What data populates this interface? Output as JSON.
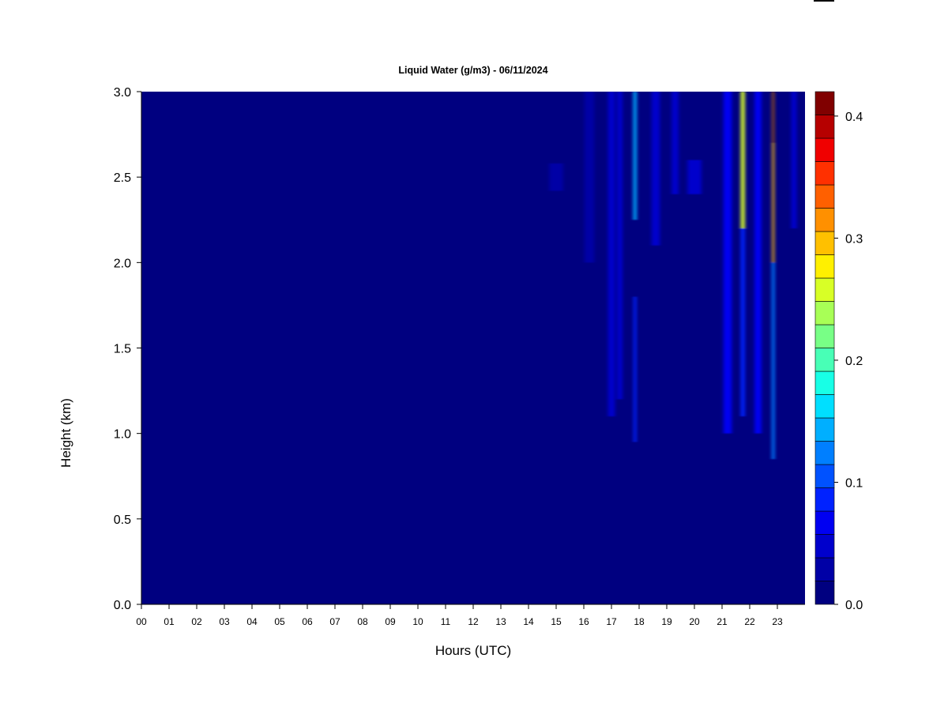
{
  "chart_data": {
    "type": "heatmap",
    "title": "Liquid Water (g/m3) - 06/11/2024",
    "xlabel": "Hours (UTC)",
    "ylabel": "Height (km)",
    "x_tick_labels": [
      "00",
      "01",
      "02",
      "03",
      "04",
      "05",
      "06",
      "07",
      "08",
      "09",
      "10",
      "11",
      "12",
      "13",
      "14",
      "15",
      "16",
      "17",
      "18",
      "19",
      "20",
      "21",
      "22",
      "23"
    ],
    "xlim": [
      0,
      24
    ],
    "y_ticks": [
      0.0,
      0.5,
      1.0,
      1.5,
      2.0,
      2.5,
      3.0
    ],
    "y_tick_labels": [
      "0.0",
      "0.5",
      "1.0",
      "1.5",
      "2.0",
      "2.5",
      "3.0"
    ],
    "ylim": [
      0,
      3
    ],
    "colorbar": {
      "range": [
        0,
        0.42
      ],
      "ticks": [
        0.0,
        0.1,
        0.2,
        0.3,
        0.4
      ],
      "tick_labels": [
        "0.0",
        "0.1",
        "0.2",
        "0.3",
        "0.4"
      ],
      "colors": [
        "#000080",
        "#0000A6",
        "#0000CC",
        "#0000F2",
        "#0022FF",
        "#0052FF",
        "#007FFF",
        "#00AFFF",
        "#00DFFF",
        "#18FFE6",
        "#48FFB6",
        "#78FF86",
        "#A8FF56",
        "#D8FF26",
        "#FFF000",
        "#FFC000",
        "#FF9000",
        "#FF6000",
        "#FF3000",
        "#F00000",
        "#B60000",
        "#800000"
      ]
    },
    "features": [
      {
        "hour": 15.0,
        "h_min": 2.42,
        "h_max": 2.58,
        "value": 0.03,
        "width_h": 0.5
      },
      {
        "hour": 16.2,
        "h_min": 2.0,
        "h_max": 3.0,
        "value": 0.03,
        "width_h": 0.35
      },
      {
        "hour": 17.0,
        "h_min": 1.1,
        "h_max": 3.0,
        "value": 0.04,
        "width_h": 0.25
      },
      {
        "hour": 17.3,
        "h_min": 1.2,
        "h_max": 3.0,
        "value": 0.05,
        "width_h": 0.2
      },
      {
        "hour": 17.85,
        "h_min": 2.25,
        "h_max": 3.0,
        "value": 0.14,
        "width_h": 0.12
      },
      {
        "hour": 17.85,
        "h_min": 0.95,
        "h_max": 1.8,
        "value": 0.09,
        "width_h": 0.1
      },
      {
        "hour": 18.6,
        "h_min": 2.1,
        "h_max": 3.0,
        "value": 0.04,
        "width_h": 0.3
      },
      {
        "hour": 19.3,
        "h_min": 2.4,
        "h_max": 3.0,
        "value": 0.05,
        "width_h": 0.25
      },
      {
        "hour": 20.0,
        "h_min": 2.4,
        "h_max": 2.6,
        "value": 0.04,
        "width_h": 0.5
      },
      {
        "hour": 21.2,
        "h_min": 1.0,
        "h_max": 3.0,
        "value": 0.06,
        "width_h": 0.3
      },
      {
        "hour": 21.75,
        "h_min": 2.2,
        "h_max": 3.0,
        "value": 0.26,
        "width_h": 0.15
      },
      {
        "hour": 21.75,
        "h_min": 1.1,
        "h_max": 2.2,
        "value": 0.09,
        "width_h": 0.15
      },
      {
        "hour": 22.3,
        "h_min": 1.0,
        "h_max": 3.0,
        "value": 0.06,
        "width_h": 0.25
      },
      {
        "hour": 22.85,
        "h_min": 2.0,
        "h_max": 3.0,
        "value": 0.3,
        "width_h": 0.08
      },
      {
        "hour": 22.85,
        "h_min": 2.7,
        "h_max": 3.0,
        "value": 0.42,
        "width_h": 0.05
      },
      {
        "hour": 22.85,
        "h_min": 0.85,
        "h_max": 2.0,
        "value": 0.13,
        "width_h": 0.1
      },
      {
        "hour": 23.6,
        "h_min": 2.2,
        "h_max": 3.0,
        "value": 0.05,
        "width_h": 0.2
      }
    ]
  }
}
